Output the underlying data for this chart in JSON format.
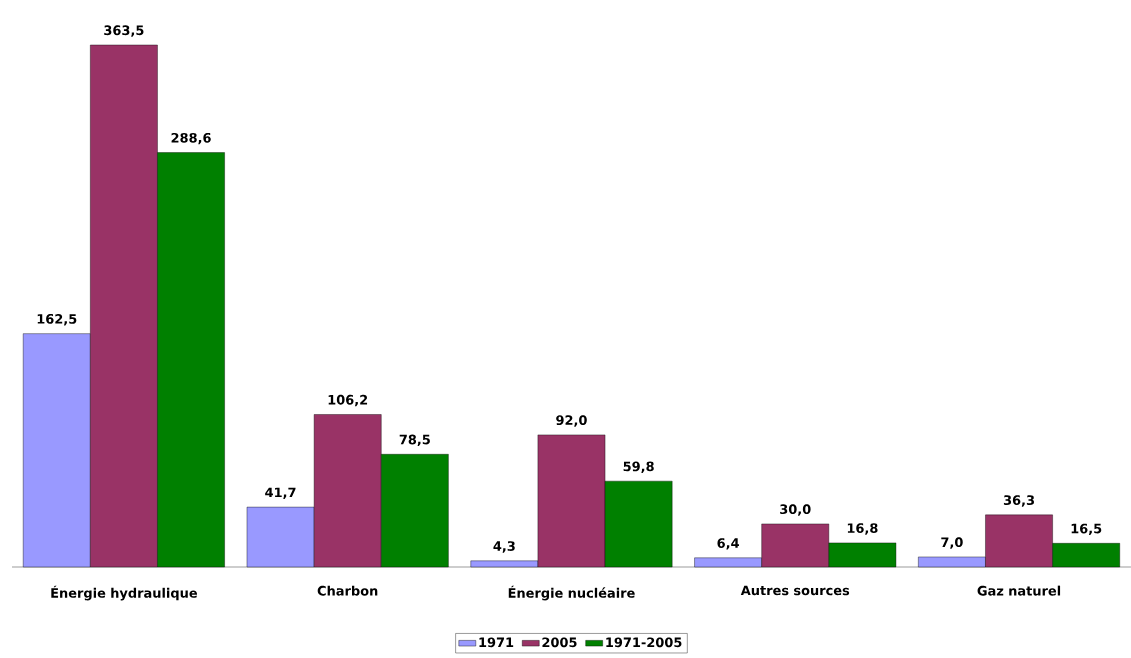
{
  "chart_data": {
    "type": "bar",
    "categories": [
      "Énergie hydraulique",
      "Charbon",
      "Énergie nucléaire",
      "Autres sources",
      "Gaz naturel"
    ],
    "series": [
      {
        "name": "1971",
        "color": "#9999ff",
        "values": [
          162.5,
          41.7,
          4.3,
          6.4,
          7.0
        ],
        "value_labels": [
          "162,5",
          "41,7",
          "4,3",
          "6,4",
          "7,0"
        ]
      },
      {
        "name": "2005",
        "color": "#993366",
        "values": [
          363.5,
          106.2,
          92.0,
          30.0,
          36.3
        ],
        "value_labels": [
          "363,5",
          "106,2",
          "92,0",
          "30,0",
          "36,3"
        ]
      },
      {
        "name": "1971-2005",
        "color": "#008000",
        "values": [
          288.6,
          78.5,
          59.8,
          16.8,
          16.5
        ],
        "value_labels": [
          "288,6",
          "78,5",
          "59,8",
          "16,8",
          "16,5"
        ]
      }
    ],
    "legend": "bottom"
  }
}
